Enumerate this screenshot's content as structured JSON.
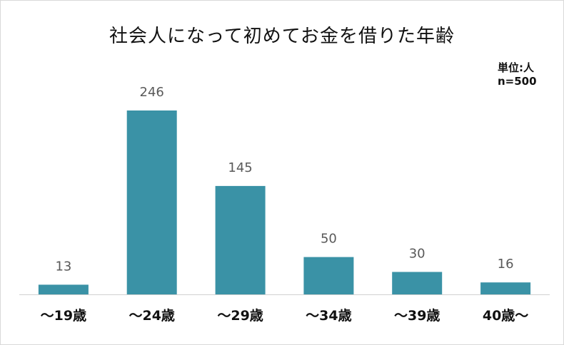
{
  "title": "社会人になって初めてお金を借りた年齢",
  "meta": {
    "unit": "単位:人",
    "n": "n=500"
  },
  "colors": {
    "bar": "#3A92A6",
    "axis": "#d0d0d0",
    "label": "#595959",
    "category": "#111111"
  },
  "chart_data": {
    "type": "bar",
    "categories": [
      "～19歳",
      "～24歳",
      "～29歳",
      "～34歳",
      "～39歳",
      "40歳～"
    ],
    "values": [
      13,
      246,
      145,
      50,
      30,
      16
    ],
    "ylim": [
      0,
      246
    ]
  }
}
